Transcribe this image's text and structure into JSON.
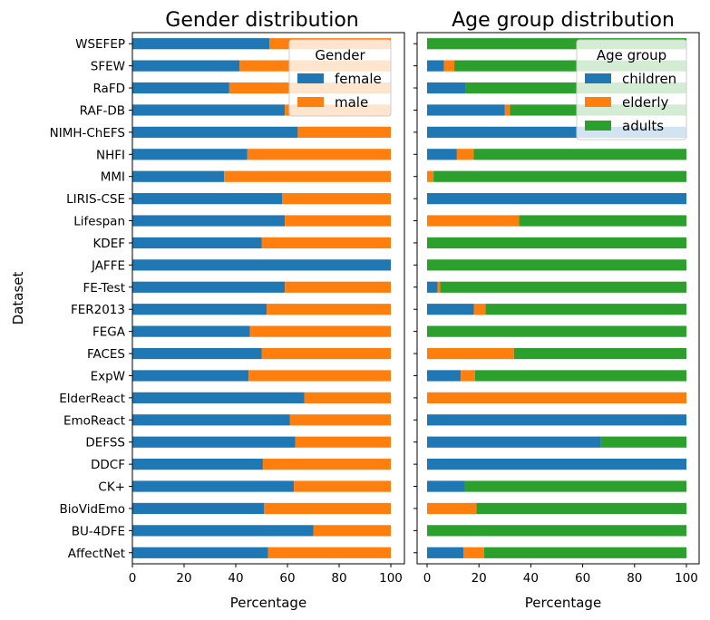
{
  "chart_data": [
    {
      "type": "bar",
      "orientation": "horizontal",
      "stacked": true,
      "title": "Gender distribution",
      "xlabel": "Percentage",
      "ylabel": "Dataset",
      "xlim": [
        0,
        100
      ],
      "xticks": [
        "0",
        "20",
        "40",
        "60",
        "80",
        "100"
      ],
      "categories": [
        "AffectNet",
        "BU-4DFE",
        "BioVidEmo",
        "CK+",
        "DDCF",
        "DEFSS",
        "EmoReact",
        "ElderReact",
        "ExpW",
        "FACES",
        "FEGA",
        "FER2013",
        "FE-Test",
        "JAFFE",
        "KDEF",
        "Lifespan",
        "LIRIS-CSE",
        "MMI",
        "NHFI",
        "NIMH-ChEFS",
        "RAF-DB",
        "RaFD",
        "SFEW",
        "WSEFEP"
      ],
      "legend_title": "Gender",
      "legend_position": "top-right",
      "grid": false,
      "series": [
        {
          "name": "female",
          "color": "#1f77b4",
          "values": [
            52.5,
            70,
            51,
            62.5,
            50.5,
            63,
            61,
            66.5,
            45,
            50,
            45.5,
            52,
            59,
            100,
            50,
            59,
            58,
            35.5,
            44.5,
            64,
            59,
            37.5,
            41.5,
            53
          ]
        },
        {
          "name": "male",
          "color": "#ff7f0e",
          "values": [
            47.5,
            30,
            49,
            37.5,
            49.5,
            37,
            39,
            33.5,
            55,
            50,
            54.5,
            48,
            41,
            0,
            50,
            41,
            42,
            64.5,
            55.5,
            36,
            41,
            62.5,
            58.5,
            47
          ]
        }
      ]
    },
    {
      "type": "bar",
      "orientation": "horizontal",
      "stacked": true,
      "title": "Age group distribution",
      "xlabel": "Percentage",
      "xlim": [
        0,
        100
      ],
      "xticks": [
        "0",
        "20",
        "40",
        "60",
        "80",
        "100"
      ],
      "categories": [
        "AffectNet",
        "BU-4DFE",
        "BioVidEmo",
        "CK+",
        "DDCF",
        "DEFSS",
        "EmoReact",
        "ElderReact",
        "ExpW",
        "FACES",
        "FEGA",
        "FER2013",
        "FE-Test",
        "JAFFE",
        "KDEF",
        "Lifespan",
        "LIRIS-CSE",
        "MMI",
        "NHFI",
        "NIMH-ChEFS",
        "RAF-DB",
        "RaFD",
        "SFEW",
        "WSEFEP"
      ],
      "legend_title": "Age group",
      "legend_position": "top-right",
      "grid": false,
      "series": [
        {
          "name": "children",
          "color": "#1f77b4",
          "values": [
            14,
            0,
            0,
            14.5,
            100,
            67,
            100,
            0,
            13,
            0,
            0,
            18,
            4,
            0,
            0,
            0,
            100,
            0,
            11.5,
            100,
            30,
            15,
            6.5,
            0
          ]
        },
        {
          "name": "elderly",
          "color": "#ff7f0e",
          "values": [
            8,
            0,
            19,
            0,
            0,
            0,
            0,
            100,
            5.5,
            33.5,
            0,
            4.5,
            1,
            0,
            0,
            35.5,
            0,
            2.5,
            6.5,
            0,
            2,
            0,
            4,
            0
          ]
        },
        {
          "name": "adults",
          "color": "#2ca02c",
          "values": [
            78,
            100,
            81,
            85.5,
            0,
            33,
            0,
            0,
            81.5,
            66.5,
            100,
            77.5,
            95,
            100,
            100,
            64.5,
            0,
            97.5,
            82,
            0,
            68,
            85,
            89.5,
            100
          ]
        }
      ]
    }
  ]
}
